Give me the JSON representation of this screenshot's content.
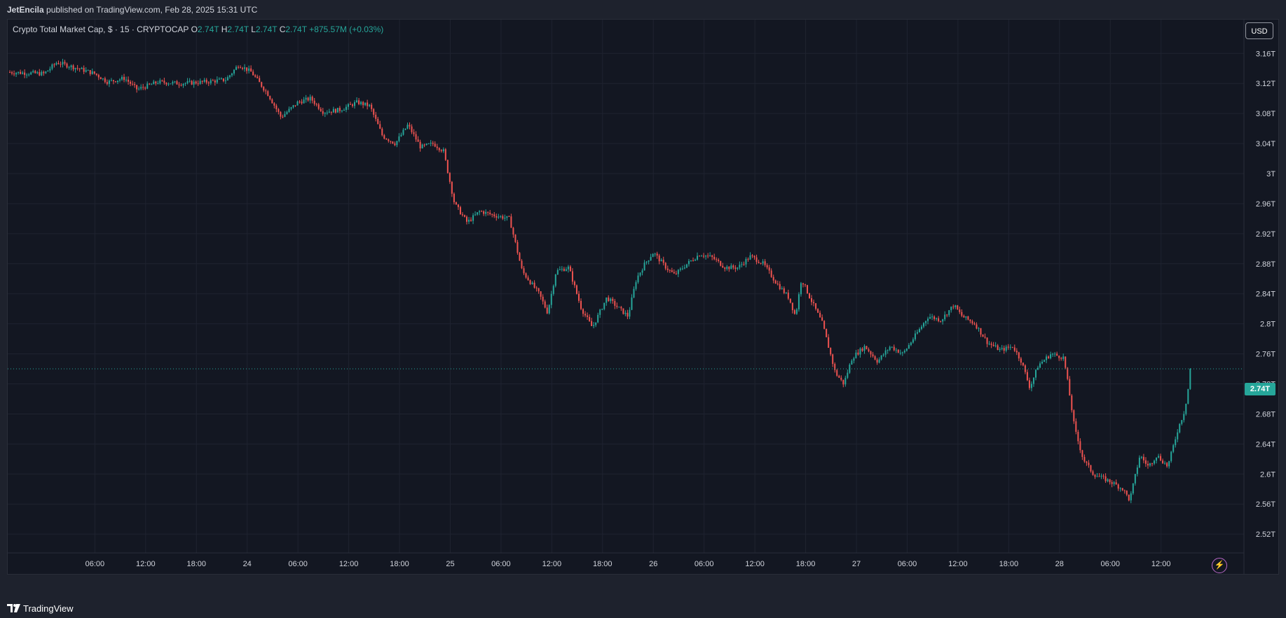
{
  "publisher": {
    "author": "JetEncila",
    "text": " published on TradingView.com, Feb 28, 2025 15:31 UTC"
  },
  "legend": {
    "symbol": "Crypto Total Market Cap, $ · 15 · CRYPTOCAP",
    "open_label": "O",
    "open": "2.74T",
    "high_label": "H",
    "high": "2.74T",
    "low_label": "L",
    "low": "2.74T",
    "close_label": "C",
    "close": "2.74T",
    "change": "+875.57M (+0.03%)"
  },
  "currency": "USD",
  "last_price_label": "2.74T",
  "brand": "TradingView",
  "colors": {
    "up": "#26a69a",
    "down": "#ef5350",
    "background": "#131722",
    "grid": "#1f2330",
    "axis_text": "#d1d4dc",
    "accent_purple": "#ba68c8"
  },
  "icons": [
    "tradingview-logo-icon",
    "lightning-icon"
  ],
  "chart_data": {
    "type": "candlestick",
    "interval": "15",
    "y_axis": {
      "ticks": [
        2.52,
        2.56,
        2.6,
        2.64,
        2.68,
        2.72,
        2.76,
        2.8,
        2.84,
        2.88,
        2.92,
        2.96,
        3.0,
        3.04,
        3.08,
        3.12,
        3.16
      ],
      "tick_labels": [
        "2.52T",
        "2.56T",
        "2.6T",
        "2.64T",
        "2.68T",
        "2.72T",
        "2.76T",
        "2.8T",
        "2.84T",
        "2.88T",
        "2.92T",
        "2.96T",
        "3T",
        "3.04T",
        "3.08T",
        "3.12T",
        "3.16T"
      ],
      "range": [
        2.495,
        3.205
      ]
    },
    "x_axis": {
      "tick_labels": [
        "06:00",
        "12:00",
        "18:00",
        "24",
        "06:00",
        "12:00",
        "18:00",
        "25",
        "06:00",
        "12:00",
        "18:00",
        "26",
        "06:00",
        "12:00",
        "18:00",
        "27",
        "06:00",
        "12:00",
        "18:00",
        "28",
        "06:00",
        "12:00"
      ],
      "tick_hours": [
        6,
        12,
        18,
        24,
        30,
        36,
        42,
        48,
        54,
        60,
        66,
        72,
        78,
        84,
        90,
        96,
        102,
        108,
        114,
        120,
        126,
        132
      ],
      "range_hours": [
        -4.3,
        141.8
      ]
    },
    "last_price": 2.74,
    "anchors": [
      {
        "h": -4.3,
        "v": 3.135
      },
      {
        "h": 0,
        "v": 3.133
      },
      {
        "h": 1.5,
        "v": 3.148
      },
      {
        "h": 4,
        "v": 3.14
      },
      {
        "h": 6,
        "v": 3.133
      },
      {
        "h": 7.5,
        "v": 3.122
      },
      {
        "h": 9.5,
        "v": 3.127
      },
      {
        "h": 11,
        "v": 3.112
      },
      {
        "h": 13.5,
        "v": 3.122
      },
      {
        "h": 16,
        "v": 3.12
      },
      {
        "h": 19,
        "v": 3.122
      },
      {
        "h": 21.5,
        "v": 3.125
      },
      {
        "h": 23,
        "v": 3.145
      },
      {
        "h": 24.5,
        "v": 3.135
      },
      {
        "h": 26.5,
        "v": 3.105
      },
      {
        "h": 28,
        "v": 3.075
      },
      {
        "h": 30,
        "v": 3.095
      },
      {
        "h": 31.5,
        "v": 3.1
      },
      {
        "h": 33,
        "v": 3.082
      },
      {
        "h": 35,
        "v": 3.085
      },
      {
        "h": 37,
        "v": 3.095
      },
      {
        "h": 38.5,
        "v": 3.09
      },
      {
        "h": 40,
        "v": 3.05
      },
      {
        "h": 41.5,
        "v": 3.04
      },
      {
        "h": 43,
        "v": 3.065
      },
      {
        "h": 44.5,
        "v": 3.035
      },
      {
        "h": 46,
        "v": 3.04
      },
      {
        "h": 47.2,
        "v": 3.03
      },
      {
        "h": 48.5,
        "v": 2.96
      },
      {
        "h": 50,
        "v": 2.935
      },
      {
        "h": 51.5,
        "v": 2.95
      },
      {
        "h": 53,
        "v": 2.945
      },
      {
        "h": 55,
        "v": 2.94
      },
      {
        "h": 56.5,
        "v": 2.87
      },
      {
        "h": 57.5,
        "v": 2.855
      },
      {
        "h": 58.5,
        "v": 2.84
      },
      {
        "h": 59.5,
        "v": 2.815
      },
      {
        "h": 60.5,
        "v": 2.87
      },
      {
        "h": 62,
        "v": 2.875
      },
      {
        "h": 63.5,
        "v": 2.82
      },
      {
        "h": 64.8,
        "v": 2.795
      },
      {
        "h": 66.5,
        "v": 2.835
      },
      {
        "h": 68,
        "v": 2.82
      },
      {
        "h": 69,
        "v": 2.81
      },
      {
        "h": 70,
        "v": 2.86
      },
      {
        "h": 71,
        "v": 2.88
      },
      {
        "h": 72,
        "v": 2.895
      },
      {
        "h": 73.5,
        "v": 2.875
      },
      {
        "h": 74.5,
        "v": 2.865
      },
      {
        "h": 76,
        "v": 2.88
      },
      {
        "h": 77.5,
        "v": 2.893
      },
      {
        "h": 79,
        "v": 2.888
      },
      {
        "h": 80.5,
        "v": 2.875
      },
      {
        "h": 82,
        "v": 2.875
      },
      {
        "h": 83.5,
        "v": 2.89
      },
      {
        "h": 85,
        "v": 2.88
      },
      {
        "h": 86.5,
        "v": 2.855
      },
      {
        "h": 88,
        "v": 2.835
      },
      {
        "h": 88.8,
        "v": 2.81
      },
      {
        "h": 89.5,
        "v": 2.86
      },
      {
        "h": 90.5,
        "v": 2.835
      },
      {
        "h": 92,
        "v": 2.8
      },
      {
        "h": 93.5,
        "v": 2.735
      },
      {
        "h": 94.5,
        "v": 2.72
      },
      {
        "h": 95.5,
        "v": 2.755
      },
      {
        "h": 97,
        "v": 2.77
      },
      {
        "h": 98.5,
        "v": 2.75
      },
      {
        "h": 100,
        "v": 2.77
      },
      {
        "h": 101.5,
        "v": 2.76
      },
      {
        "h": 103,
        "v": 2.785
      },
      {
        "h": 104.5,
        "v": 2.81
      },
      {
        "h": 106,
        "v": 2.805
      },
      {
        "h": 107.5,
        "v": 2.825
      },
      {
        "h": 108.5,
        "v": 2.81
      },
      {
        "h": 110,
        "v": 2.8
      },
      {
        "h": 111.5,
        "v": 2.775
      },
      {
        "h": 113,
        "v": 2.765
      },
      {
        "h": 114.5,
        "v": 2.77
      },
      {
        "h": 115.5,
        "v": 2.75
      },
      {
        "h": 116.5,
        "v": 2.715
      },
      {
        "h": 117.5,
        "v": 2.745
      },
      {
        "h": 119,
        "v": 2.76
      },
      {
        "h": 120.5,
        "v": 2.755
      },
      {
        "h": 121,
        "v": 2.72
      },
      {
        "h": 121.8,
        "v": 2.66
      },
      {
        "h": 122.8,
        "v": 2.62
      },
      {
        "h": 124,
        "v": 2.6
      },
      {
        "h": 126,
        "v": 2.59
      },
      {
        "h": 127.5,
        "v": 2.58
      },
      {
        "h": 128.3,
        "v": 2.565
      },
      {
        "h": 129.5,
        "v": 2.625
      },
      {
        "h": 130.5,
        "v": 2.61
      },
      {
        "h": 131.5,
        "v": 2.625
      },
      {
        "h": 132.8,
        "v": 2.61
      },
      {
        "h": 134,
        "v": 2.66
      },
      {
        "h": 134.8,
        "v": 2.685
      },
      {
        "h": 135.6,
        "v": 2.742
      }
    ]
  }
}
